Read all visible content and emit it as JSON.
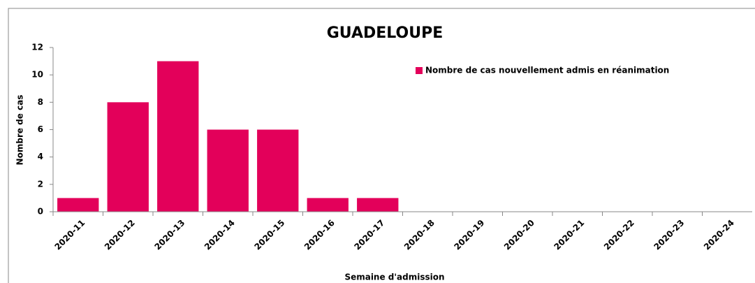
{
  "chart_data": {
    "type": "bar",
    "title": "GUADELOUPE",
    "x_label": "Semaine d'admission",
    "y_label": "Nombre de cas",
    "categories": [
      "2020-11",
      "2020-12",
      "2020-13",
      "2020-14",
      "2020-15",
      "2020-16",
      "2020-17",
      "2020-18",
      "2020-19",
      "2020-20",
      "2020-21",
      "2020-22",
      "2020-23",
      "2020-24"
    ],
    "series": [
      {
        "name": "Nombre de cas nouvellement admis en réanimation",
        "color": "#e3005a",
        "values": [
          1,
          8,
          11,
          6,
          6,
          1,
          1,
          0,
          0,
          0,
          0,
          0,
          0,
          0
        ]
      }
    ],
    "ylim": [
      0,
      12
    ],
    "yticks": [
      0,
      2,
      4,
      6,
      8,
      10,
      12
    ],
    "grid": false,
    "legend": "top-right"
  }
}
